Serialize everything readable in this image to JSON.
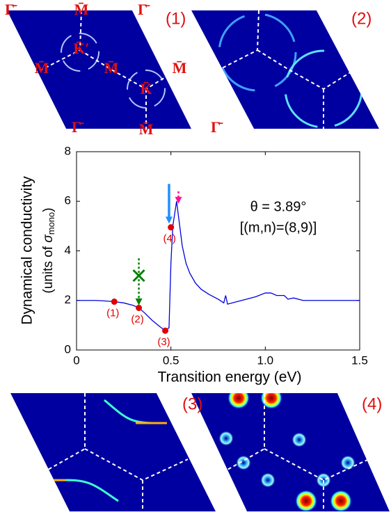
{
  "panels": [
    {
      "label": "(1)",
      "points": [
        "Γ̄",
        "M̄",
        "Γ̄",
        "K̄′",
        "M̄",
        "M̄",
        "M̄",
        "K̄",
        "Γ̄",
        "M̄",
        "Γ̄"
      ]
    },
    {
      "label": "(2)"
    },
    {
      "label": "(3)"
    },
    {
      "label": "(4)"
    }
  ],
  "chart_data": {
    "type": "line",
    "x_label": "Transition energy (eV)",
    "y_label": [
      "Dynamical conductivity",
      "(units of ",
      "σ",
      "mono",
      ")"
    ],
    "annotations": [
      "θ = 3.89°",
      "[(m,n)=(8,9)]"
    ],
    "xlim": [
      0,
      1.5
    ],
    "ylim": [
      0,
      8
    ],
    "xticks": [
      0,
      0.5,
      {
        "value": 1,
        "label": "1.0"
      },
      1.5
    ],
    "yticks": [
      0,
      2,
      4,
      6,
      8
    ],
    "x": [
      0,
      0.05,
      0.1,
      0.15,
      0.2,
      0.25,
      0.3,
      0.33,
      0.36,
      0.4,
      0.44,
      0.47,
      0.49,
      0.5,
      0.51,
      0.52,
      0.53,
      0.54,
      0.56,
      0.58,
      0.6,
      0.63,
      0.66,
      0.7,
      0.75,
      0.78,
      0.79,
      0.8,
      0.85,
      0.9,
      0.95,
      1.0,
      1.03,
      1.06,
      1.1,
      1.12,
      1.15,
      1.2,
      1.3,
      1.4,
      1.5
    ],
    "series": [
      {
        "color": "#0000e0",
        "values": [
          2.0,
          2.0,
          2.0,
          1.98,
          1.95,
          1.9,
          1.8,
          1.7,
          1.5,
          1.2,
          0.95,
          0.78,
          0.9,
          3.5,
          5.0,
          5.5,
          6.0,
          5.4,
          4.2,
          3.5,
          3.1,
          2.7,
          2.45,
          2.25,
          2.05,
          1.9,
          2.2,
          1.85,
          1.95,
          2.05,
          2.15,
          2.3,
          2.3,
          2.2,
          2.2,
          2.05,
          2.1,
          2.0,
          2.0,
          2.0,
          2.0
        ]
      }
    ],
    "points": {
      "labels": [
        "(1)",
        "(2)",
        "(3)",
        "(4)"
      ],
      "x": [
        0.2,
        0.33,
        0.47,
        0.5
      ],
      "values": [
        1.95,
        1.7,
        0.78,
        4.95
      ],
      "color": "#e00000"
    },
    "arrows": [
      {
        "x": 0.49,
        "from": 6.7,
        "to": 5.1,
        "color": "#1e90ff",
        "dash": false
      },
      {
        "x": 0.54,
        "from": 6.4,
        "to": 5.9,
        "color": "#ff1493",
        "dash": true
      },
      {
        "x": 0.33,
        "from": 3.7,
        "to": 1.8,
        "color": "#008000",
        "dash": true
      }
    ],
    "cross": {
      "x": 0.33,
      "value": 3.0,
      "color": "#008000"
    }
  }
}
